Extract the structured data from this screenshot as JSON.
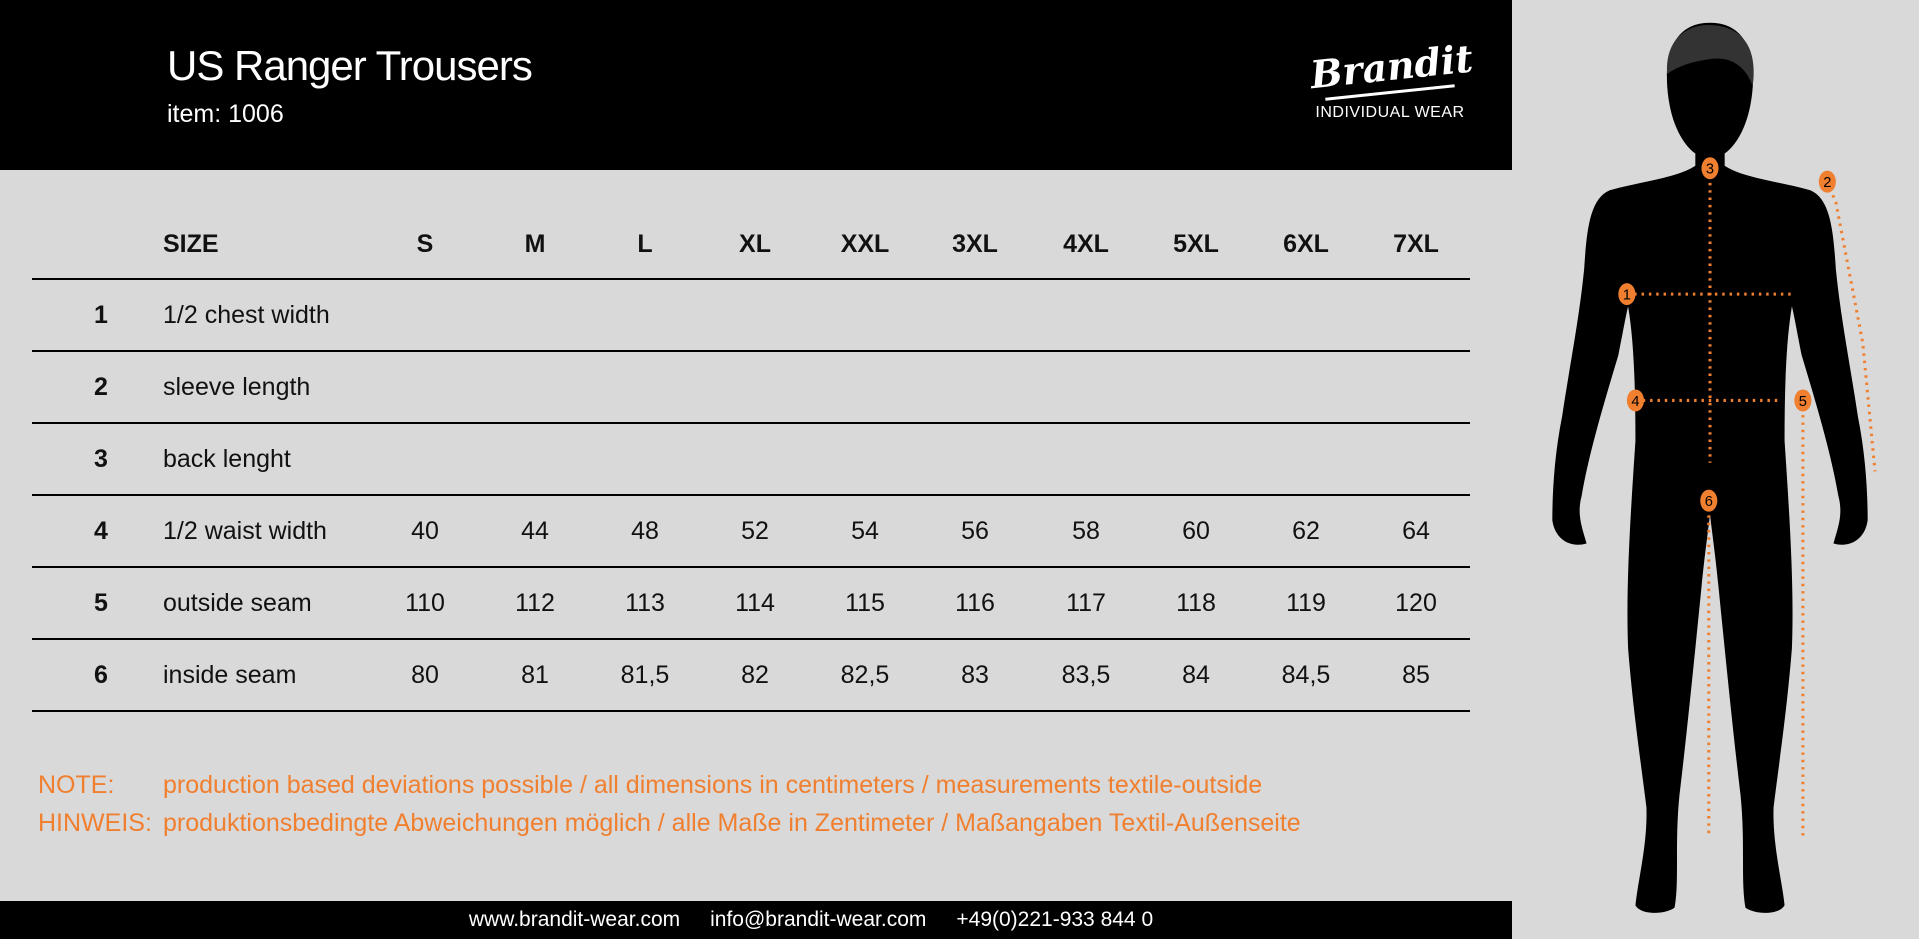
{
  "header": {
    "title": "US Ranger Trousers",
    "item": "item: 1006",
    "logo": {
      "brand": "Brandit",
      "tagline": "INDIVIDUAL WEAR"
    }
  },
  "table": {
    "size_label": "SIZE",
    "sizes": [
      "S",
      "M",
      "L",
      "XL",
      "XXL",
      "3XL",
      "4XL",
      "5XL",
      "6XL",
      "7XL"
    ],
    "rows": [
      {
        "num": "1",
        "label": "1/2 chest width",
        "values": [
          "",
          "",
          "",
          "",
          "",
          "",
          "",
          "",
          "",
          ""
        ]
      },
      {
        "num": "2",
        "label": "sleeve length",
        "values": [
          "",
          "",
          "",
          "",
          "",
          "",
          "",
          "",
          "",
          ""
        ]
      },
      {
        "num": "3",
        "label": "back lenght",
        "values": [
          "",
          "",
          "",
          "",
          "",
          "",
          "",
          "",
          "",
          ""
        ]
      },
      {
        "num": "4",
        "label": "1/2 waist width",
        "values": [
          "40",
          "44",
          "48",
          "52",
          "54",
          "56",
          "58",
          "60",
          "62",
          "64"
        ]
      },
      {
        "num": "5",
        "label": "outside seam",
        "values": [
          "110",
          "112",
          "113",
          "114",
          "115",
          "116",
          "117",
          "118",
          "119",
          "120"
        ]
      },
      {
        "num": "6",
        "label": "inside seam",
        "values": [
          "80",
          "81",
          "81,5",
          "82",
          "82,5",
          "83",
          "83,5",
          "84",
          "84,5",
          "85"
        ]
      }
    ]
  },
  "notes": [
    {
      "key": "NOTE:",
      "text": "production based deviations possible / all dimensions in centimeters / measurements textile-outside"
    },
    {
      "key": "HINWEIS:",
      "text": "produktionsbedingte Abweichungen möglich / alle Maße in Zentimeter / Maßangaben Textil-Außenseite"
    }
  ],
  "footer": {
    "website": "www.brandit-wear.com",
    "email": "info@brandit-wear.com",
    "phone": "+49(0)221-933 844 0"
  },
  "figure": {
    "markers": [
      "1",
      "2",
      "3",
      "4",
      "5",
      "6"
    ]
  },
  "colors": {
    "accent": "#f07f2f",
    "background": "#d9d9d9",
    "header": "#000000"
  }
}
